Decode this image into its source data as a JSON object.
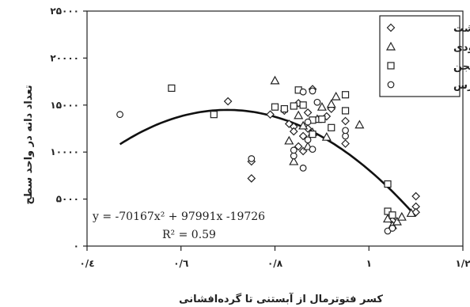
{
  "chart_data": {
    "type": "scatter",
    "title": "",
    "xlabel": "کسر فتوترمال از آبستنی تا گرده‌افشانی",
    "ylabel": "تعداد دانه در واحد سطح",
    "xlim": [
      0.4,
      1.2
    ],
    "ylim": [
      0,
      25000
    ],
    "x_ticks": [
      0.4,
      0.6,
      0.8,
      1.0,
      1.2
    ],
    "x_tick_labels": [
      "۰/٤",
      "۰/٦",
      "۰/۸",
      "۱",
      "۱/۲"
    ],
    "y_ticks": [
      0,
      5000,
      10000,
      15000,
      20000,
      25000
    ],
    "y_tick_labels": [
      "۰",
      "۵۰۰۰",
      "۱۰۰۰۰",
      "۱۵۰۰۰",
      "۲۰۰۰۰",
      "۲۵۰۰۰"
    ],
    "grid": false,
    "legend_position": "top-right",
    "series": [
      {
        "name": "کوهدشت",
        "marker": "diamond",
        "points": [
          [
            0.7,
            15400
          ],
          [
            0.75,
            9000
          ],
          [
            0.75,
            7200
          ],
          [
            0.79,
            14000
          ],
          [
            0.82,
            14400
          ],
          [
            0.83,
            13000
          ],
          [
            0.84,
            12700
          ],
          [
            0.84,
            12200
          ],
          [
            0.85,
            15200
          ],
          [
            0.85,
            10600
          ],
          [
            0.86,
            11700
          ],
          [
            0.86,
            10100
          ],
          [
            0.87,
            12500
          ],
          [
            0.87,
            14200
          ],
          [
            0.88,
            16700
          ],
          [
            0.91,
            13800
          ],
          [
            0.92,
            14600
          ],
          [
            0.95,
            13300
          ],
          [
            0.95,
            10900
          ],
          [
            1.05,
            2700
          ],
          [
            1.1,
            5300
          ],
          [
            1.1,
            4200
          ],
          [
            1.1,
            3600
          ]
        ]
      },
      {
        "name": "شیرودی",
        "marker": "triangle",
        "points": [
          [
            0.8,
            17600
          ],
          [
            0.83,
            11200
          ],
          [
            0.84,
            9000
          ],
          [
            0.85,
            13900
          ],
          [
            0.86,
            12800
          ],
          [
            0.87,
            10600
          ],
          [
            0.88,
            12100
          ],
          [
            0.89,
            13500
          ],
          [
            0.9,
            14800
          ],
          [
            0.91,
            11600
          ],
          [
            0.92,
            15100
          ],
          [
            0.93,
            15900
          ],
          [
            0.98,
            12900
          ],
          [
            1.04,
            2900
          ],
          [
            1.05,
            2200
          ],
          [
            1.06,
            2600
          ],
          [
            1.07,
            3100
          ],
          [
            1.09,
            3500
          ]
        ]
      },
      {
        "name": "نجن",
        "marker": "square",
        "points": [
          [
            0.58,
            16800
          ],
          [
            0.67,
            14000
          ],
          [
            0.8,
            14800
          ],
          [
            0.82,
            14600
          ],
          [
            0.84,
            14900
          ],
          [
            0.85,
            16600
          ],
          [
            0.86,
            15000
          ],
          [
            0.88,
            13400
          ],
          [
            0.88,
            11900
          ],
          [
            0.9,
            13500
          ],
          [
            0.92,
            12600
          ],
          [
            0.95,
            16100
          ],
          [
            0.95,
            14400
          ],
          [
            1.04,
            6600
          ],
          [
            1.04,
            3700
          ],
          [
            1.05,
            3300
          ]
        ]
      },
      {
        "name": "زاگرس",
        "marker": "circle",
        "points": [
          [
            0.47,
            14000
          ],
          [
            0.75,
            9300
          ],
          [
            0.84,
            9600
          ],
          [
            0.84,
            10200
          ],
          [
            0.86,
            16400
          ],
          [
            0.86,
            8300
          ],
          [
            0.87,
            13200
          ],
          [
            0.87,
            11300
          ],
          [
            0.88,
            10300
          ],
          [
            0.88,
            16500
          ],
          [
            0.89,
            15300
          ],
          [
            0.95,
            11700
          ],
          [
            0.95,
            12300
          ],
          [
            1.04,
            1600
          ],
          [
            1.05,
            1900
          ]
        ]
      }
    ],
    "trendline": {
      "equation_text": "y = -70167x² + 97991x -19726",
      "r2_text": "R² = 0.59",
      "coefficients": [
        -70167,
        97991,
        -19726
      ],
      "x_range": [
        0.47,
        1.1
      ]
    }
  }
}
